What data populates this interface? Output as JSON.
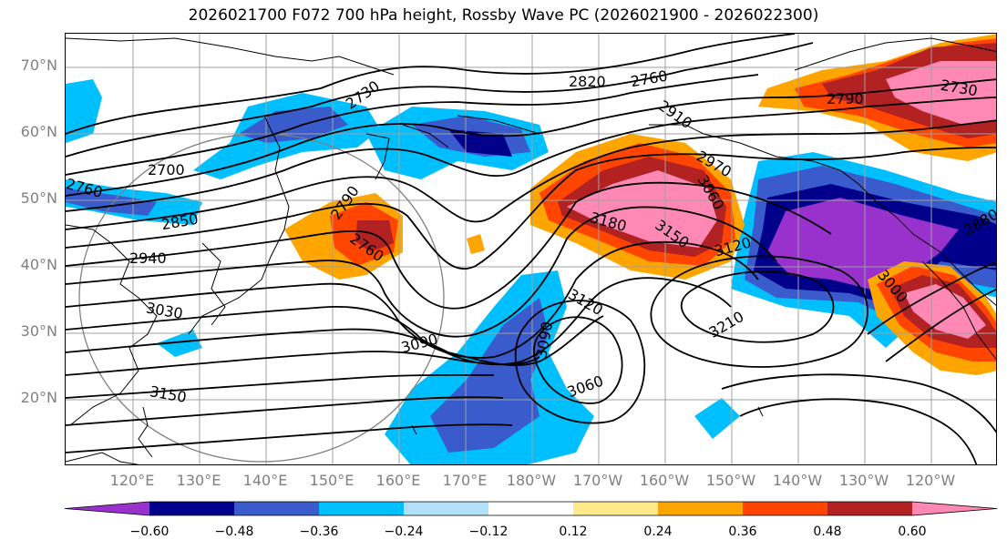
{
  "title": "2026021700 F072 700 hPa height, Rossby Wave PC (2026021900 - 2026022300)",
  "lat_labels": [
    "70°N",
    "60°N",
    "50°N",
    "40°N",
    "30°N",
    "20°N"
  ],
  "lon_labels": [
    "120°E",
    "130°E",
    "140°E",
    "150°E",
    "160°E",
    "170°E",
    "180°W",
    "170°W",
    "160°W",
    "150°W",
    "140°W",
    "130°W",
    "120°W"
  ],
  "contour_labels": [
    "2700",
    "2730",
    "2760",
    "2820",
    "2760",
    "2910",
    "2970",
    "2790",
    "2730",
    "2880",
    "2760",
    "2850",
    "2940",
    "3030",
    "3090",
    "3150",
    "2790",
    "2760",
    "3180",
    "3150",
    "3060",
    "3120",
    "3120",
    "3090",
    "3060",
    "3210",
    "3000"
  ],
  "colorbar": {
    "colors": [
      "#9932cc",
      "#00008b",
      "#3a5bcc",
      "#00bfff",
      "#b0e0fa",
      "#ffffff",
      "#ffe98a",
      "#ffa500",
      "#ff4500",
      "#b22222",
      "#ff88b4"
    ],
    "labels": [
      "−0.60",
      "−0.48",
      "−0.36",
      "−0.24",
      "−0.12",
      "0.12",
      "0.24",
      "0.36",
      "0.48",
      "0.60"
    ]
  },
  "colors": {
    "land_outline": "#000000",
    "grid": "#a0a0a0",
    "axis_labels": "#808080"
  }
}
